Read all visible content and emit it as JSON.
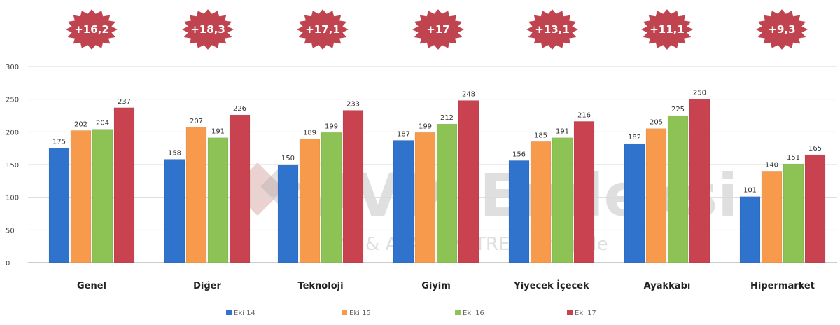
{
  "chart_data": {
    "type": "bar",
    "categories": [
      "Genel",
      "Diğer",
      "Teknoloji",
      "Giyim",
      "Yiyecek İçecek",
      "Ayakkabı",
      "Hipermarket"
    ],
    "series": [
      {
        "name": "Eki 14",
        "color": "#2f73cc",
        "values": [
          175,
          158,
          150,
          187,
          156,
          182,
          101
        ],
        "labels": [
          "175",
          "158",
          "150",
          "187",
          "156",
          "182",
          "101"
        ]
      },
      {
        "name": "Eki 15",
        "color": "#f79a4b",
        "values": [
          202,
          207,
          189,
          199,
          185,
          205,
          140
        ],
        "labels": [
          "202",
          "207",
          "189",
          "199",
          "185",
          "205",
          "140"
        ]
      },
      {
        "name": "Eki 16",
        "color": "#8dc255",
        "values": [
          204,
          191,
          199,
          212,
          191,
          225,
          151
        ],
        "labels": [
          "204",
          "191",
          "199",
          "212",
          "191",
          "225",
          "151"
        ]
      },
      {
        "name": "Eki 17",
        "color": "#c8424f",
        "values": [
          237,
          226,
          233,
          248,
          216,
          250,
          165
        ],
        "labels": [
          "237",
          "226",
          "233",
          "248",
          "216",
          "250",
          "165"
        ]
      }
    ],
    "badges": [
      "+16,2",
      "+18,3",
      "+17,1",
      "+17",
      "+13,1",
      "+11,1",
      "+9,3"
    ],
    "badge_color": "#c0444f",
    "ylim": [
      0,
      300
    ],
    "yticks": [
      0,
      50,
      100,
      150,
      200,
      250,
      300
    ],
    "grid": true,
    "legend_position": "bottom",
    "watermark": {
      "main": "AVM Endeksi",
      "sub": "AYD & AKADEMETRE işbirliği ile"
    }
  }
}
